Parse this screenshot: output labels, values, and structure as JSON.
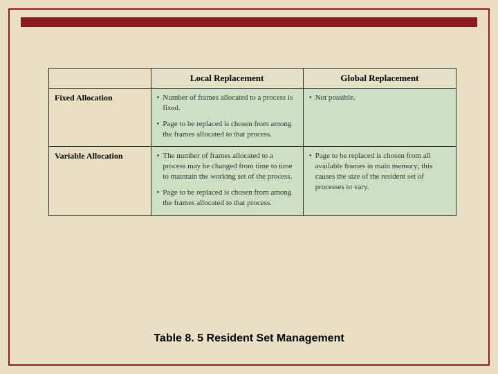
{
  "caption": "Table 8. 5  Resident Set Management",
  "headers": {
    "col1": "Local Replacement",
    "col2": "Global Replacement"
  },
  "rows": [
    {
      "label": "Fixed Allocation",
      "col1_bullets": [
        "Number of frames allocated to a process is fixed.",
        "Page to be replaced is chosen from among the frames allocated to that process."
      ],
      "col2_bullets": [
        "Not possible."
      ]
    },
    {
      "label": "Variable Allocation",
      "col1_bullets": [
        "The number of frames allocated to a process may be changed from time to time to maintain the working set of the process.",
        "Page to be replaced is chosen from among the frames allocated to that process."
      ],
      "col2_bullets": [
        "Page to be replaced is chosen from all available frames in main memory; this causes the size of the resident set of processes to vary."
      ]
    }
  ],
  "colors": {
    "background": "#e8dfc4",
    "accent": "#8b1a1a",
    "cell_bg": "#cde0c3",
    "header_bg": "#e5e0c8",
    "border": "#333333",
    "text": "#000000"
  }
}
